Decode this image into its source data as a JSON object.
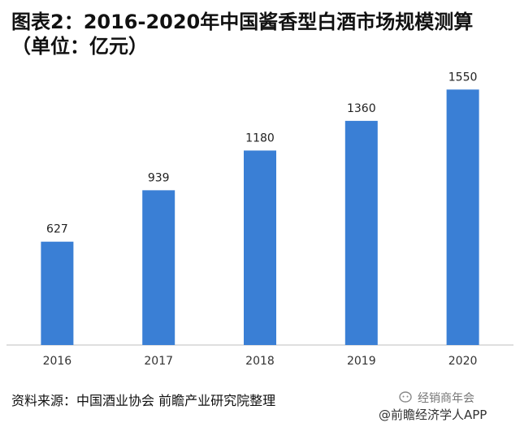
{
  "title": "图表2：2016-2020年中国酱香型白酒市场规模测算（单位：亿元）",
  "source": "资料来源：中国酒业协会 前瞻产业研究院整理",
  "watermark": {
    "account": "经销商年会",
    "badge": "@前瞻经济学人APP"
  },
  "chart_data": {
    "type": "bar",
    "title": "图表2：2016-2020年中国酱香型白酒市场规模测算（单位：亿元）",
    "categories": [
      "2016",
      "2017",
      "2018",
      "2019",
      "2020"
    ],
    "values": [
      627,
      939,
      1180,
      1360,
      1550
    ],
    "ylim": [
      0,
      1650
    ],
    "xlabel": "",
    "ylabel": "",
    "grid": false,
    "legend": "none",
    "bar_color": "#3a7fd5",
    "axis_color": "#bfbfbf"
  }
}
